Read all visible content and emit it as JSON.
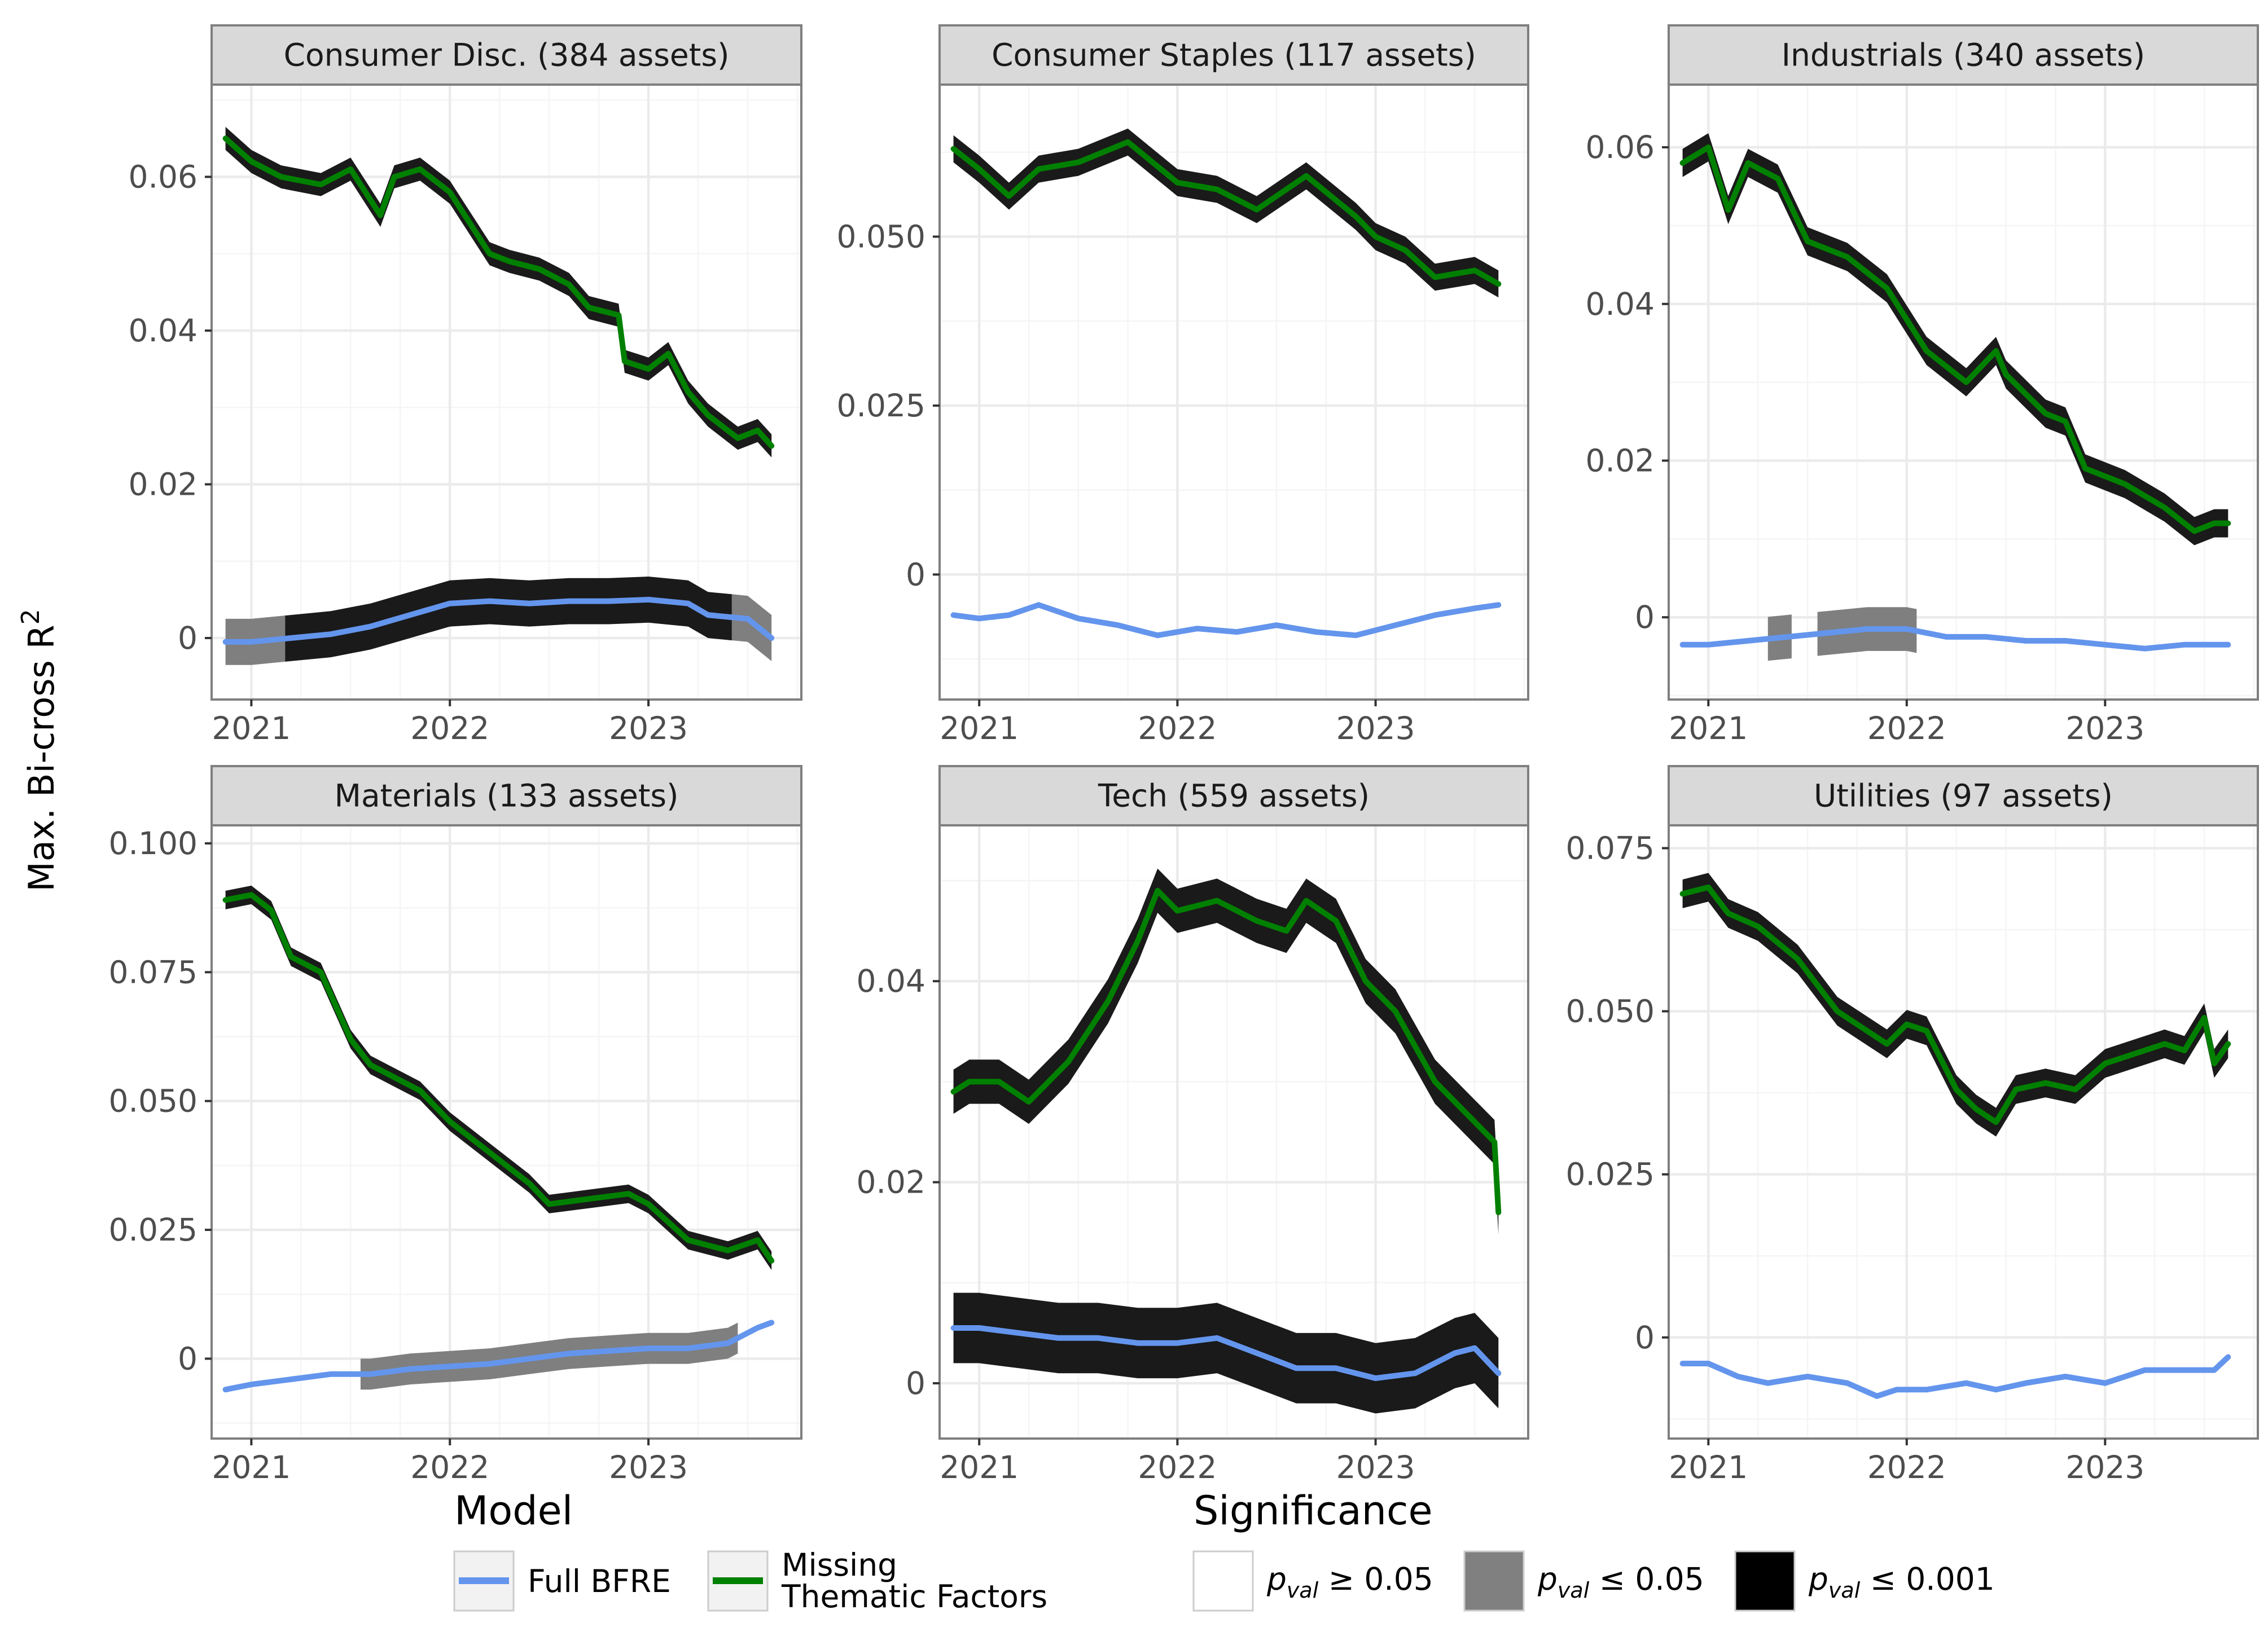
{
  "chart_data": [
    {
      "type": "line",
      "title": "Consumer Disc. (384 assets)",
      "xlabel": "",
      "ylabel": "Max. Bi-cross R²",
      "xlim": [
        2020.8,
        2023.77
      ],
      "ylim": [
        -0.008,
        0.072
      ],
      "x_ticks": [
        {
          "v": 2021,
          "label": "2021"
        },
        {
          "v": 2022,
          "label": "2022"
        },
        {
          "v": 2023,
          "label": "2023"
        }
      ],
      "y_ticks": [
        {
          "v": 0,
          "label": "0"
        },
        {
          "v": 0.02,
          "label": "0.02"
        },
        {
          "v": 0.04,
          "label": "0.04"
        },
        {
          "v": 0.06,
          "label": "0.06"
        }
      ],
      "series": [
        {
          "name": "Missing Thematic Factors",
          "color": "#008000",
          "band_half_width": 0.0015,
          "x": [
            2020.87,
            2021.0,
            2021.15,
            2021.35,
            2021.5,
            2021.65,
            2021.72,
            2021.85,
            2022.0,
            2022.2,
            2022.3,
            2022.45,
            2022.6,
            2022.7,
            2022.85,
            2022.88,
            2023.0,
            2023.1,
            2023.2,
            2023.3,
            2023.45,
            2023.55,
            2023.62
          ],
          "y": [
            0.065,
            0.062,
            0.06,
            0.059,
            0.061,
            0.055,
            0.06,
            0.061,
            0.058,
            0.05,
            0.049,
            0.048,
            0.046,
            0.043,
            0.042,
            0.036,
            0.035,
            0.037,
            0.032,
            0.029,
            0.026,
            0.027,
            0.025
          ],
          "significance_segments": [
            {
              "x0": 2020.87,
              "x1": 2023.62,
              "level": "p<=0.001"
            }
          ]
        },
        {
          "name": "Full BFRE",
          "color": "#6495ED",
          "band_half_width": 0.003,
          "x": [
            2020.87,
            2021.0,
            2021.2,
            2021.4,
            2021.6,
            2021.8,
            2022.0,
            2022.2,
            2022.4,
            2022.6,
            2022.8,
            2023.0,
            2023.2,
            2023.3,
            2023.5,
            2023.62
          ],
          "y": [
            -0.0005,
            -0.0005,
            0.0,
            0.0005,
            0.0015,
            0.003,
            0.0045,
            0.0048,
            0.0045,
            0.0048,
            0.0048,
            0.005,
            0.0045,
            0.003,
            0.0025,
            0.0
          ],
          "significance_segments": [
            {
              "x0": 2020.87,
              "x1": 2021.17,
              "level": "p<=0.05"
            },
            {
              "x0": 2021.17,
              "x1": 2023.42,
              "level": "p<=0.001"
            },
            {
              "x0": 2023.42,
              "x1": 2023.62,
              "level": "p<=0.05"
            }
          ]
        }
      ]
    },
    {
      "type": "line",
      "title": "Consumer Staples (117 assets)",
      "xlabel": "",
      "ylabel": "Max. Bi-cross R²",
      "xlim": [
        2020.8,
        2023.77
      ],
      "ylim": [
        -0.0185,
        0.0725
      ],
      "x_ticks": [
        {
          "v": 2021,
          "label": "2021"
        },
        {
          "v": 2022,
          "label": "2022"
        },
        {
          "v": 2023,
          "label": "2023"
        }
      ],
      "y_ticks": [
        {
          "v": 0,
          "label": "0"
        },
        {
          "v": 0.025,
          "label": "0.025"
        },
        {
          "v": 0.05,
          "label": "0.050"
        }
      ],
      "series": [
        {
          "name": "Missing Thematic Factors",
          "color": "#008000",
          "band_half_width": 0.002,
          "x": [
            2020.87,
            2021.0,
            2021.15,
            2021.3,
            2021.5,
            2021.75,
            2022.0,
            2022.2,
            2022.4,
            2022.65,
            2022.9,
            2023.0,
            2023.15,
            2023.3,
            2023.5,
            2023.62
          ],
          "y": [
            0.063,
            0.06,
            0.056,
            0.06,
            0.061,
            0.064,
            0.058,
            0.057,
            0.054,
            0.059,
            0.053,
            0.05,
            0.048,
            0.044,
            0.045,
            0.043
          ],
          "significance_segments": [
            {
              "x0": 2020.87,
              "x1": 2023.62,
              "level": "p<=0.001"
            }
          ]
        },
        {
          "name": "Full BFRE",
          "color": "#6495ED",
          "band_half_width": 0.0,
          "x": [
            2020.87,
            2021.0,
            2021.15,
            2021.3,
            2021.5,
            2021.7,
            2021.9,
            2022.1,
            2022.3,
            2022.5,
            2022.7,
            2022.9,
            2023.1,
            2023.3,
            2023.5,
            2023.62
          ],
          "y": [
            -0.006,
            -0.0065,
            -0.006,
            -0.0045,
            -0.0065,
            -0.0075,
            -0.009,
            -0.008,
            -0.0085,
            -0.0075,
            -0.0085,
            -0.009,
            -0.0075,
            -0.006,
            -0.005,
            -0.0045
          ],
          "significance_segments": [
            {
              "x0": 2020.87,
              "x1": 2023.62,
              "level": "p>=0.05"
            }
          ]
        }
      ]
    },
    {
      "type": "line",
      "title": "Industrials (340 assets)",
      "xlabel": "",
      "ylabel": "Max. Bi-cross R²",
      "xlim": [
        2020.8,
        2023.77
      ],
      "ylim": [
        -0.0105,
        0.068
      ],
      "x_ticks": [
        {
          "v": 2021,
          "label": "2021"
        },
        {
          "v": 2022,
          "label": "2022"
        },
        {
          "v": 2023,
          "label": "2023"
        }
      ],
      "y_ticks": [
        {
          "v": 0,
          "label": "0"
        },
        {
          "v": 0.02,
          "label": "0.02"
        },
        {
          "v": 0.04,
          "label": "0.04"
        },
        {
          "v": 0.06,
          "label": "0.06"
        }
      ],
      "series": [
        {
          "name": "Missing Thematic Factors",
          "color": "#008000",
          "band_half_width": 0.0018,
          "x": [
            2020.87,
            2021.0,
            2021.1,
            2021.2,
            2021.35,
            2021.5,
            2021.7,
            2021.9,
            2022.1,
            2022.3,
            2022.45,
            2022.5,
            2022.7,
            2022.8,
            2022.9,
            2023.1,
            2023.3,
            2023.45,
            2023.55,
            2023.62
          ],
          "y": [
            0.058,
            0.06,
            0.052,
            0.058,
            0.056,
            0.048,
            0.046,
            0.042,
            0.034,
            0.03,
            0.034,
            0.031,
            0.026,
            0.025,
            0.019,
            0.017,
            0.014,
            0.011,
            0.012,
            0.012
          ],
          "significance_segments": [
            {
              "x0": 2020.87,
              "x1": 2023.62,
              "level": "p<=0.001"
            }
          ]
        },
        {
          "name": "Full BFRE",
          "color": "#6495ED",
          "band_half_width": 0.0028,
          "x": [
            2020.87,
            2021.0,
            2021.2,
            2021.4,
            2021.6,
            2021.8,
            2022.0,
            2022.2,
            2022.4,
            2022.6,
            2022.8,
            2023.0,
            2023.2,
            2023.4,
            2023.62
          ],
          "y": [
            -0.0035,
            -0.0035,
            -0.003,
            -0.0025,
            -0.002,
            -0.0015,
            -0.0015,
            -0.0025,
            -0.0025,
            -0.003,
            -0.003,
            -0.0035,
            -0.004,
            -0.0035,
            -0.0035
          ],
          "significance_segments": [
            {
              "x0": 2021.3,
              "x1": 2021.42,
              "level": "p<=0.05"
            },
            {
              "x0": 2021.55,
              "x1": 2022.05,
              "level": "p<=0.05"
            }
          ]
        }
      ]
    },
    {
      "type": "line",
      "title": "Materials (133 assets)",
      "xlabel": "",
      "ylabel": "Max. Bi-cross R²",
      "xlim": [
        2020.8,
        2023.77
      ],
      "ylim": [
        -0.0155,
        0.1035
      ],
      "x_ticks": [
        {
          "v": 2021,
          "label": "2021"
        },
        {
          "v": 2022,
          "label": "2022"
        },
        {
          "v": 2023,
          "label": "2023"
        }
      ],
      "y_ticks": [
        {
          "v": 0,
          "label": "0"
        },
        {
          "v": 0.025,
          "label": "0.025"
        },
        {
          "v": 0.05,
          "label": "0.050"
        },
        {
          "v": 0.075,
          "label": "0.075"
        },
        {
          "v": 0.1,
          "label": "0.100"
        }
      ],
      "series": [
        {
          "name": "Missing Thematic Factors",
          "color": "#008000",
          "band_half_width": 0.0018,
          "x": [
            2020.87,
            2021.0,
            2021.1,
            2021.2,
            2021.35,
            2021.5,
            2021.6,
            2021.7,
            2021.85,
            2022.0,
            2022.2,
            2022.4,
            2022.5,
            2022.7,
            2022.9,
            2023.0,
            2023.2,
            2023.4,
            2023.55,
            2023.62
          ],
          "y": [
            0.089,
            0.09,
            0.087,
            0.078,
            0.075,
            0.062,
            0.057,
            0.055,
            0.052,
            0.046,
            0.04,
            0.034,
            0.03,
            0.031,
            0.032,
            0.03,
            0.023,
            0.021,
            0.023,
            0.019
          ],
          "significance_segments": [
            {
              "x0": 2020.87,
              "x1": 2023.62,
              "level": "p<=0.001"
            }
          ]
        },
        {
          "name": "Full BFRE",
          "color": "#6495ED",
          "band_half_width": 0.003,
          "x": [
            2020.87,
            2021.0,
            2021.2,
            2021.4,
            2021.6,
            2021.8,
            2022.0,
            2022.2,
            2022.4,
            2022.6,
            2022.8,
            2023.0,
            2023.2,
            2023.4,
            2023.55,
            2023.62
          ],
          "y": [
            -0.006,
            -0.005,
            -0.004,
            -0.003,
            -0.003,
            -0.002,
            -0.0015,
            -0.001,
            0.0,
            0.001,
            0.0015,
            0.002,
            0.002,
            0.003,
            0.006,
            0.007
          ],
          "significance_segments": [
            {
              "x0": 2021.55,
              "x1": 2023.45,
              "level": "p<=0.05"
            }
          ]
        }
      ]
    },
    {
      "type": "line",
      "title": "Tech (559 assets)",
      "xlabel": "",
      "ylabel": "Max. Bi-cross R²",
      "xlim": [
        2020.8,
        2023.77
      ],
      "ylim": [
        -0.0055,
        0.0555
      ],
      "x_ticks": [
        {
          "v": 2021,
          "label": "2021"
        },
        {
          "v": 2022,
          "label": "2022"
        },
        {
          "v": 2023,
          "label": "2023"
        }
      ],
      "y_ticks": [
        {
          "v": 0,
          "label": "0"
        },
        {
          "v": 0.02,
          "label": "0.02"
        },
        {
          "v": 0.04,
          "label": "0.04"
        }
      ],
      "series": [
        {
          "name": "Missing Thematic Factors",
          "color": "#008000",
          "band_half_width": 0.0022,
          "x": [
            2020.87,
            2020.95,
            2021.1,
            2021.25,
            2021.45,
            2021.65,
            2021.8,
            2021.9,
            2022.0,
            2022.2,
            2022.4,
            2022.55,
            2022.65,
            2022.8,
            2022.95,
            2023.1,
            2023.3,
            2023.45,
            2023.55,
            2023.6,
            2023.62
          ],
          "y": [
            0.029,
            0.03,
            0.03,
            0.028,
            0.032,
            0.038,
            0.044,
            0.049,
            0.047,
            0.048,
            0.046,
            0.045,
            0.048,
            0.046,
            0.04,
            0.037,
            0.03,
            0.027,
            0.025,
            0.024,
            0.017
          ],
          "significance_segments": [
            {
              "x0": 2020.87,
              "x1": 2023.62,
              "level": "p<=0.001"
            }
          ]
        },
        {
          "name": "Full BFRE",
          "color": "#6495ED",
          "band_half_width": 0.0035,
          "x": [
            2020.87,
            2021.0,
            2021.2,
            2021.4,
            2021.6,
            2021.8,
            2022.0,
            2022.2,
            2022.4,
            2022.6,
            2022.8,
            2023.0,
            2023.2,
            2023.4,
            2023.5,
            2023.62
          ],
          "y": [
            0.0055,
            0.0055,
            0.005,
            0.0045,
            0.0045,
            0.004,
            0.004,
            0.0045,
            0.003,
            0.0015,
            0.0015,
            0.0005,
            0.001,
            0.003,
            0.0035,
            0.001
          ],
          "significance_segments": [
            {
              "x0": 2020.87,
              "x1": 2023.62,
              "level": "p<=0.001"
            }
          ]
        }
      ]
    },
    {
      "type": "line",
      "title": "Utilities (97 assets)",
      "xlabel": "",
      "ylabel": "Max. Bi-cross R²",
      "xlim": [
        2020.8,
        2023.77
      ],
      "ylim": [
        -0.0155,
        0.0785
      ],
      "x_ticks": [
        {
          "v": 2021,
          "label": "2021"
        },
        {
          "v": 2022,
          "label": "2022"
        },
        {
          "v": 2023,
          "label": "2023"
        }
      ],
      "y_ticks": [
        {
          "v": 0,
          "label": "0"
        },
        {
          "v": 0.025,
          "label": "0.025"
        },
        {
          "v": 0.05,
          "label": "0.050"
        },
        {
          "v": 0.075,
          "label": "0.075"
        }
      ],
      "series": [
        {
          "name": "Missing Thematic Factors",
          "color": "#008000",
          "band_half_width": 0.0022,
          "x": [
            2020.87,
            2021.0,
            2021.1,
            2021.25,
            2021.45,
            2021.65,
            2021.8,
            2021.9,
            2022.0,
            2022.1,
            2022.25,
            2022.35,
            2022.45,
            2022.55,
            2022.7,
            2022.85,
            2023.0,
            2023.2,
            2023.3,
            2023.4,
            2023.5,
            2023.55,
            2023.62
          ],
          "y": [
            0.068,
            0.069,
            0.065,
            0.063,
            0.058,
            0.05,
            0.047,
            0.045,
            0.048,
            0.047,
            0.038,
            0.035,
            0.033,
            0.038,
            0.039,
            0.038,
            0.042,
            0.044,
            0.045,
            0.044,
            0.049,
            0.042,
            0.045
          ],
          "significance_segments": [
            {
              "x0": 2020.87,
              "x1": 2023.62,
              "level": "p<=0.001"
            }
          ]
        },
        {
          "name": "Full BFRE",
          "color": "#6495ED",
          "band_half_width": 0.0,
          "x": [
            2020.87,
            2021.0,
            2021.15,
            2021.3,
            2021.5,
            2021.7,
            2021.85,
            2021.95,
            2022.1,
            2022.3,
            2022.45,
            2022.6,
            2022.8,
            2023.0,
            2023.2,
            2023.4,
            2023.55,
            2023.62
          ],
          "y": [
            -0.004,
            -0.004,
            -0.006,
            -0.007,
            -0.006,
            -0.007,
            -0.009,
            -0.008,
            -0.008,
            -0.007,
            -0.008,
            -0.007,
            -0.006,
            -0.007,
            -0.005,
            -0.005,
            -0.005,
            -0.003
          ],
          "significance_segments": [
            {
              "x0": 2020.87,
              "x1": 2023.62,
              "level": "p>=0.05"
            }
          ]
        }
      ]
    }
  ],
  "figure": {
    "ylabel": "Max. Bi-cross R",
    "ylabel_superscript": "2"
  },
  "legend": {
    "model_title": "Model",
    "model_items": [
      {
        "label_lines": [
          "Full BFRE"
        ],
        "color": "#6495ED"
      },
      {
        "label_lines": [
          "Missing",
          "Thematic Factors"
        ],
        "color": "#008000"
      }
    ],
    "significance_title": "Significance",
    "significance_items": [
      {
        "sym": "p",
        "sub": "val",
        "rel": " ≥ 0.05",
        "fill": "#ffffff"
      },
      {
        "sym": "p",
        "sub": "val",
        "rel": " ≤ 0.05",
        "fill": "#808080"
      },
      {
        "sym": "p",
        "sub": "val",
        "rel": " ≤ 0.001",
        "fill": "#000000"
      }
    ]
  },
  "colors": {
    "panel_strip": "#D9D9D9",
    "panel_border": "#7F7F7F",
    "grid_major": "#EBEBEB",
    "grid_minor": "#F5F5F5",
    "band_p001": "#1A1A1A",
    "band_p05": "#7F7F7F"
  }
}
